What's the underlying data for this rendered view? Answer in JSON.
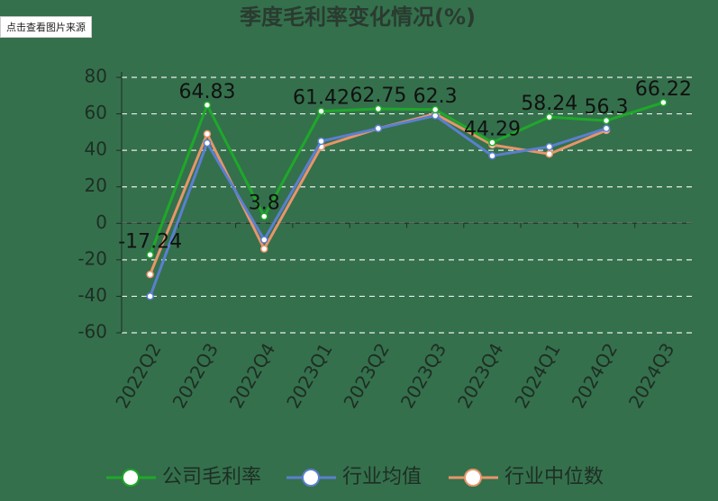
{
  "source_button": "点击查看图片来源",
  "chart_data": {
    "type": "line",
    "title": "季度毛利率变化情况(%)",
    "categories": [
      "2022Q2",
      "2022Q3",
      "2022Q4",
      "2023Q1",
      "2023Q2",
      "2023Q3",
      "2023Q4",
      "2024Q1",
      "2024Q2",
      "2024Q3"
    ],
    "series": [
      {
        "name": "公司毛利率",
        "color": "#1fa82a",
        "values": [
          -17.24,
          64.83,
          3.8,
          61.42,
          62.75,
          62.3,
          44.29,
          58.24,
          56.3,
          66.22
        ],
        "show_labels": true
      },
      {
        "name": "行业均值",
        "color": "#5b7fcf",
        "values": [
          -40,
          44,
          -9,
          45,
          52,
          59,
          37,
          42,
          52,
          null
        ]
      },
      {
        "name": "行业中位数",
        "color": "#e8956a",
        "values": [
          -28,
          49,
          -14,
          42,
          52,
          60,
          43,
          38,
          51,
          null
        ]
      }
    ],
    "ylim": [
      -60,
      80
    ],
    "yticks": [
      -60,
      -40,
      -20,
      0,
      20,
      40,
      60,
      80
    ],
    "grid": true
  }
}
